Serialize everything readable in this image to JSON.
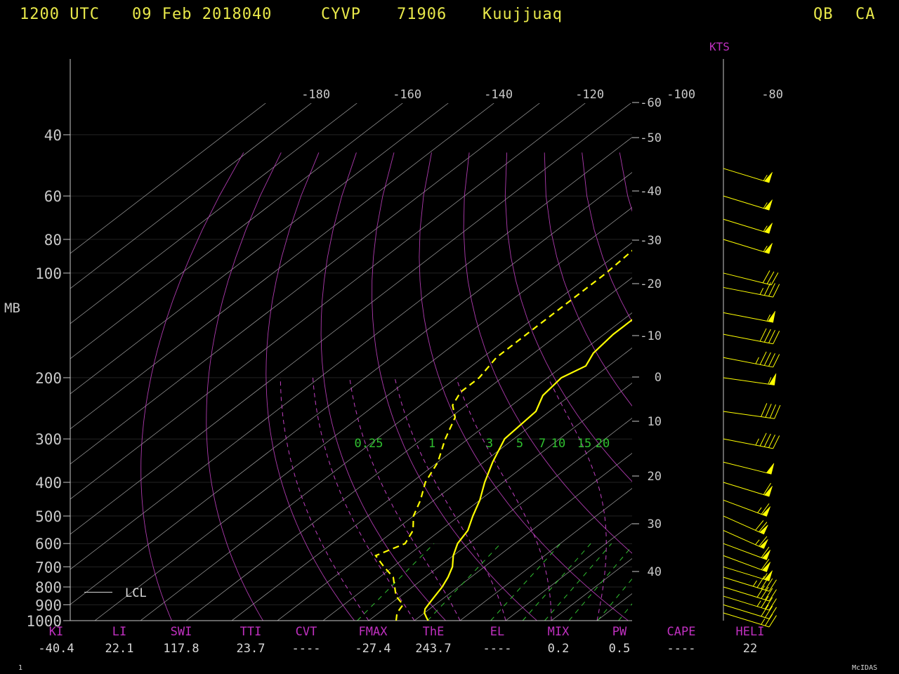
{
  "header": {
    "time": "1200 UTC",
    "date": "09 Feb 2018040",
    "station_id": "CYVP",
    "wmo_id": "71906",
    "station_name": "Kuujjuaq",
    "province": "QB",
    "country": "CA"
  },
  "pressure_axis_label": "MB",
  "wind_axis_label": "KTS",
  "lcl_label": "LCL",
  "footer": {
    "frame_number": "1",
    "software": "McIDAS"
  },
  "indices": [
    {
      "name": "KI",
      "value": "-40.4"
    },
    {
      "name": "LI",
      "value": "22.1"
    },
    {
      "name": "SWI",
      "value": "117.8"
    },
    {
      "name": "TTI",
      "value": "23.7"
    },
    {
      "name": "CVT",
      "value": "----"
    },
    {
      "name": "FMAX",
      "value": "-27.4"
    },
    {
      "name": "ThE",
      "value": "243.7"
    },
    {
      "name": "EL",
      "value": "----"
    },
    {
      "name": "MIX",
      "value": "0.2"
    },
    {
      "name": "PW",
      "value": "0.5"
    },
    {
      "name": "CAPE",
      "value": "----"
    },
    {
      "name": "HELI",
      "value": "22"
    }
  ],
  "colors": {
    "background": "#000000",
    "temperature": "#ffff00",
    "dewpoint": "#ffff00",
    "isotherms": "#c8c8c8",
    "adiabats": "#c040c0",
    "mixing_ratio": "#30c030",
    "labels": "#c8c8c8",
    "index_names": "#c030c0",
    "header": "#e8e84a",
    "wind_barbs": "#ffff00"
  },
  "chart_data": {
    "type": "skew-t",
    "pressure_ticks_mb": [
      40,
      60,
      80,
      100,
      200,
      300,
      400,
      500,
      600,
      700,
      800,
      900,
      1000
    ],
    "top_temp_labels_c": [
      -180,
      -160,
      -140,
      -120,
      -100,
      -80
    ],
    "right_temp_labels_c": [
      -60,
      -50,
      -40,
      -30,
      -20,
      -10,
      0,
      10,
      20,
      30,
      40
    ],
    "mixing_ratio_labels_gkg": [
      "0.25",
      "1",
      "3",
      "5",
      "7",
      "10",
      "15",
      "20"
    ],
    "temperature_profile": [
      {
        "p": 1000,
        "t": -17
      },
      {
        "p": 975,
        "t": -18.5
      },
      {
        "p": 950,
        "t": -20
      },
      {
        "p": 925,
        "t": -21
      },
      {
        "p": 900,
        "t": -21.5
      },
      {
        "p": 850,
        "t": -22.5
      },
      {
        "p": 800,
        "t": -23.5
      },
      {
        "p": 750,
        "t": -25
      },
      {
        "p": 700,
        "t": -27
      },
      {
        "p": 650,
        "t": -30
      },
      {
        "p": 600,
        "t": -32.5
      },
      {
        "p": 550,
        "t": -34
      },
      {
        "p": 500,
        "t": -37
      },
      {
        "p": 450,
        "t": -40
      },
      {
        "p": 400,
        "t": -44
      },
      {
        "p": 350,
        "t": -48
      },
      {
        "p": 300,
        "t": -52
      },
      {
        "p": 250,
        "t": -53
      },
      {
        "p": 225,
        "t": -56
      },
      {
        "p": 200,
        "t": -57
      },
      {
        "p": 185,
        "t": -55
      },
      {
        "p": 170,
        "t": -57
      },
      {
        "p": 150,
        "t": -58
      },
      {
        "p": 140,
        "t": -58
      },
      {
        "p": 125,
        "t": -58
      },
      {
        "p": 115,
        "t": -58
      },
      {
        "p": 100,
        "t": -61
      },
      {
        "p": 80,
        "t": -64
      },
      {
        "p": 70,
        "t": -63
      },
      {
        "p": 60,
        "t": -63
      },
      {
        "p": 50,
        "t": -62
      },
      {
        "p": 45,
        "t": -64
      },
      {
        "p": 40,
        "t": -64
      }
    ],
    "dewpoint_profile": [
      {
        "p": 1000,
        "td": -24
      },
      {
        "p": 950,
        "td": -26
      },
      {
        "p": 900,
        "td": -27
      },
      {
        "p": 850,
        "td": -31
      },
      {
        "p": 750,
        "td": -37
      },
      {
        "p": 700,
        "td": -42
      },
      {
        "p": 650,
        "td": -47
      },
      {
        "p": 600,
        "td": -44
      },
      {
        "p": 550,
        "td": -46
      },
      {
        "p": 500,
        "td": -50
      },
      {
        "p": 450,
        "td": -53
      },
      {
        "p": 400,
        "td": -57
      },
      {
        "p": 350,
        "td": -60
      },
      {
        "p": 300,
        "td": -65
      },
      {
        "p": 260,
        "td": -69
      },
      {
        "p": 240,
        "td": -73
      },
      {
        "p": 220,
        "td": -75
      },
      {
        "p": 200,
        "td": -75
      },
      {
        "p": 175,
        "td": -77
      },
      {
        "p": 150,
        "td": -77
      },
      {
        "p": 130,
        "td": -77
      },
      {
        "p": 115,
        "td": -77
      },
      {
        "p": 100,
        "td": -77
      },
      {
        "p": 80,
        "td": -78
      },
      {
        "p": 60,
        "td": -77
      },
      {
        "p": 50,
        "td": -76
      },
      {
        "p": 40,
        "td": -77
      }
    ],
    "winds": [
      {
        "p": 950,
        "dir": 300,
        "kts": 25
      },
      {
        "p": 900,
        "dir": 300,
        "kts": 30
      },
      {
        "p": 850,
        "dir": 300,
        "kts": 35
      },
      {
        "p": 800,
        "dir": 300,
        "kts": 40
      },
      {
        "p": 750,
        "dir": 300,
        "kts": 45
      },
      {
        "p": 700,
        "dir": 300,
        "kts": 55
      },
      {
        "p": 650,
        "dir": 305,
        "kts": 60
      },
      {
        "p": 600,
        "dir": 305,
        "kts": 60
      },
      {
        "p": 550,
        "dir": 310,
        "kts": 65
      },
      {
        "p": 500,
        "dir": 310,
        "kts": 70
      },
      {
        "p": 450,
        "dir": 305,
        "kts": 65
      },
      {
        "p": 400,
        "dir": 300,
        "kts": 60
      },
      {
        "p": 350,
        "dir": 295,
        "kts": 50
      },
      {
        "p": 300,
        "dir": 290,
        "kts": 45
      },
      {
        "p": 250,
        "dir": 285,
        "kts": 40
      },
      {
        "p": 200,
        "dir": 285,
        "kts": 55
      },
      {
        "p": 175,
        "dir": 290,
        "kts": 45
      },
      {
        "p": 150,
        "dir": 290,
        "kts": 40
      },
      {
        "p": 130,
        "dir": 290,
        "kts": 55
      },
      {
        "p": 110,
        "dir": 290,
        "kts": 35
      },
      {
        "p": 100,
        "dir": 295,
        "kts": 30
      },
      {
        "p": 80,
        "dir": 300,
        "kts": 55
      },
      {
        "p": 70,
        "dir": 300,
        "kts": 55
      },
      {
        "p": 60,
        "dir": 300,
        "kts": 55
      },
      {
        "p": 50,
        "dir": 300,
        "kts": 55
      }
    ]
  }
}
